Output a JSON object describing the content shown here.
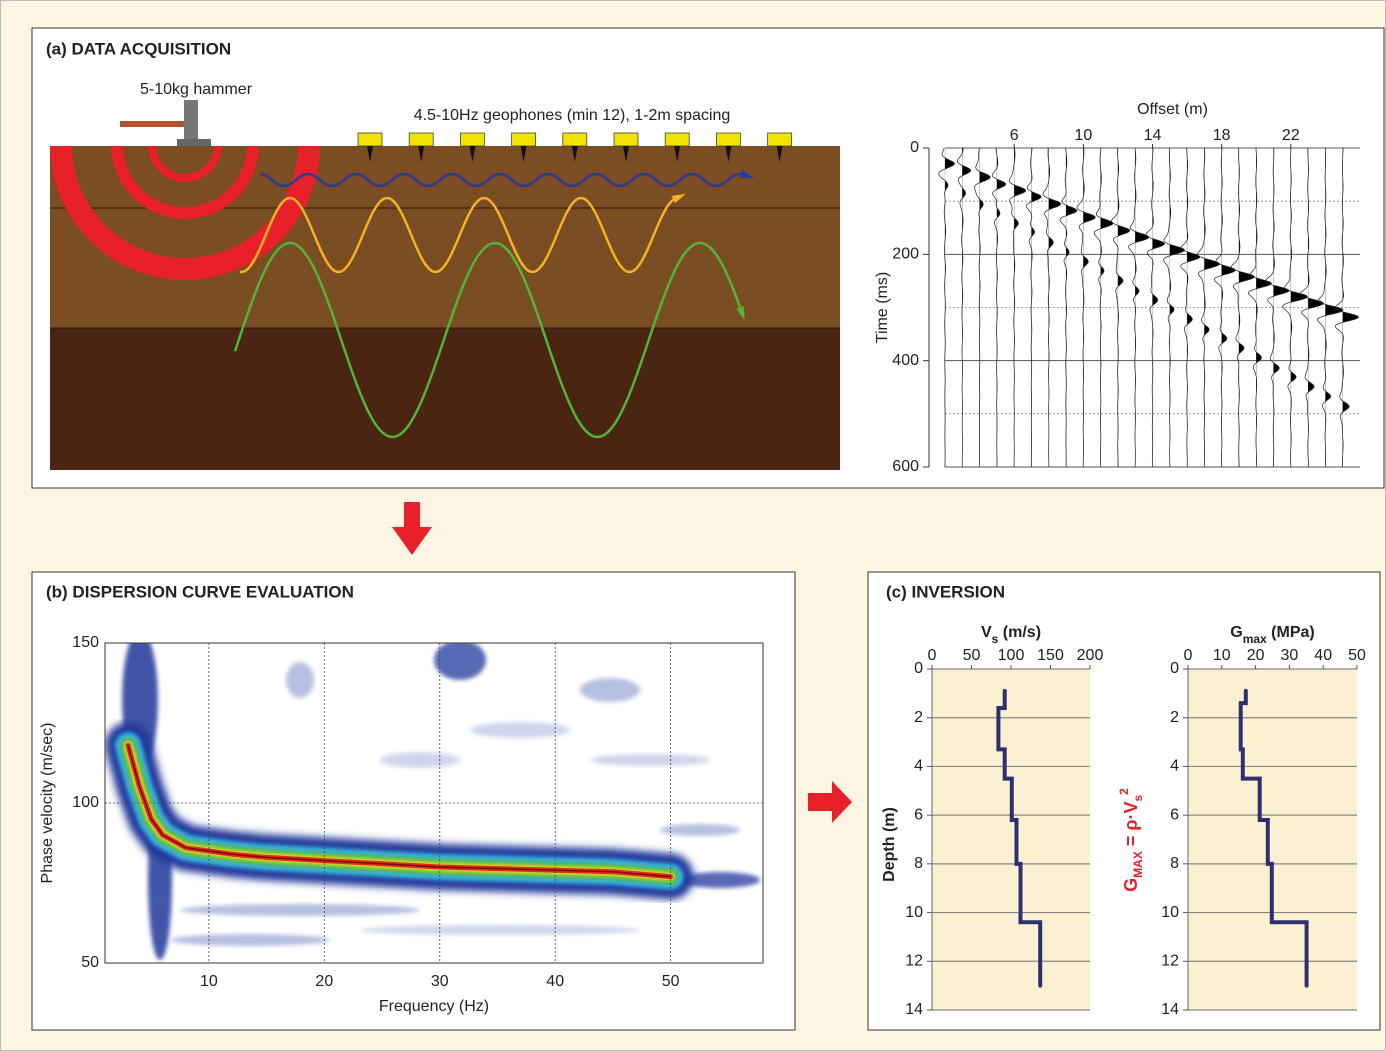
{
  "panels": [
    {
      "title": "(a) DATA ACQUISITION",
      "hammer_label": "5-10kg hammer",
      "geophone_label": "4.5-10Hz geophones (min 12), 1-2m spacing"
    },
    {
      "title": "(b) DISPERSION CURVE EVALUATION"
    },
    {
      "title": "(c) INVERSION",
      "equation": [
        "G",
        "MAX",
        " = ρ·V",
        "s",
        "2"
      ]
    }
  ],
  "chart_data": [
    {
      "type": "seismogram",
      "x_label": "Offset (m)",
      "y_label": "Time (ms)",
      "x": [
        2,
        3,
        4,
        5,
        6,
        7,
        8,
        9,
        10,
        11,
        12,
        13,
        14,
        15,
        16,
        17,
        18,
        19,
        20,
        21,
        22,
        23,
        24,
        25
      ],
      "values": [
        30,
        42,
        55,
        68,
        80,
        92,
        105,
        118,
        130,
        142,
        155,
        168,
        180,
        192,
        205,
        218,
        230,
        242,
        255,
        268,
        280,
        292,
        305,
        318
      ],
      "xlim": [
        2,
        26
      ],
      "xticks": [
        6,
        10,
        14,
        18,
        22
      ],
      "ylim": [
        0,
        600
      ],
      "yticks": [
        0,
        200,
        400,
        600
      ],
      "minor_grid": [
        100,
        300,
        500
      ],
      "y_inverted": true,
      "color": "#000000"
    },
    {
      "type": "dispersion",
      "x_label": "Frequency (Hz)",
      "y_label": "Phase velocity (m/sec)",
      "x": [
        3,
        4,
        5,
        6,
        8,
        10,
        12,
        15,
        20,
        25,
        30,
        35,
        40,
        45,
        50
      ],
      "values": [
        118,
        105,
        95,
        90,
        86,
        85,
        84,
        83,
        82,
        81,
        80,
        79.5,
        79,
        78.5,
        77
      ],
      "xlim": [
        1,
        58
      ],
      "xticks": [
        10,
        20,
        30,
        40,
        50
      ],
      "ylim": [
        50,
        150
      ],
      "yticks": [
        50,
        100,
        150
      ],
      "grid": true
    },
    {
      "type": "profile",
      "x_label": [
        "V",
        "s",
        " (m/s)"
      ],
      "y_label": "Depth (m)",
      "x": [
        92,
        92,
        84,
        84,
        92,
        92,
        101,
        101,
        107,
        107,
        112,
        112,
        137,
        137
      ],
      "values": [
        0.9,
        1.6,
        1.6,
        3.3,
        3.3,
        4.5,
        4.5,
        6.2,
        6.2,
        8.0,
        8.0,
        10.4,
        10.4,
        13.0
      ],
      "xlim": [
        0,
        200
      ],
      "xticks": [
        0,
        50,
        100,
        150,
        200
      ],
      "ylim": [
        0,
        14
      ],
      "yticks": [
        0,
        2,
        4,
        6,
        8,
        10,
        12,
        14
      ],
      "y_inverted": true,
      "color": "#2e2f6e",
      "grid": true
    },
    {
      "type": "profile",
      "x_label": [
        "G",
        "max",
        " (MPa)"
      ],
      "x": [
        17.1,
        17.1,
        15.6,
        15.6,
        16.2,
        16.2,
        21.2,
        21.2,
        23.6,
        23.6,
        24.8,
        24.8,
        35.1,
        35.1
      ],
      "values": [
        0.9,
        1.4,
        1.4,
        3.3,
        3.3,
        4.5,
        4.5,
        6.2,
        6.2,
        8.0,
        8.0,
        10.4,
        10.4,
        13.0
      ],
      "xlim": [
        0,
        50
      ],
      "xticks": [
        0,
        10,
        20,
        30,
        40,
        50
      ],
      "ylim": [
        0,
        14
      ],
      "yticks": [
        0,
        2,
        4,
        6,
        8,
        10,
        12,
        14
      ],
      "y_inverted": true,
      "color": "#2e2f6e",
      "grid": true
    }
  ]
}
